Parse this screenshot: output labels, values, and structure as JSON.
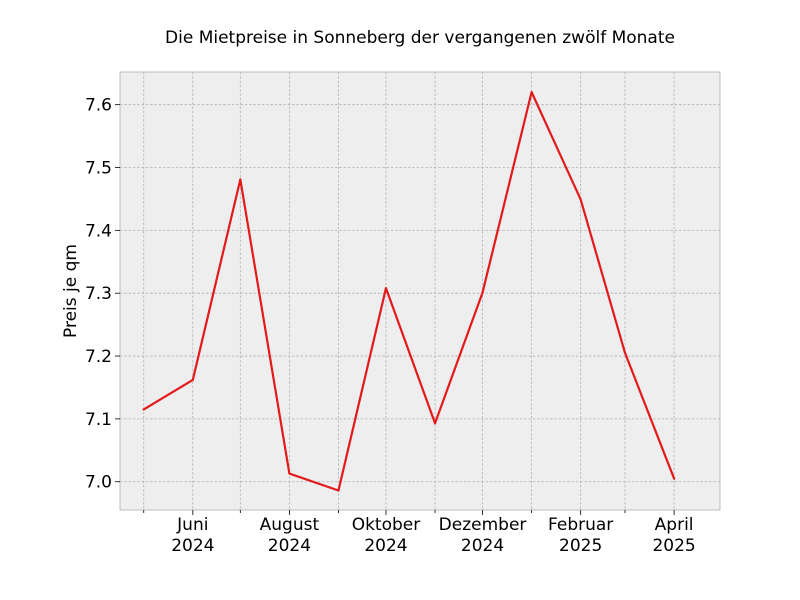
{
  "chart_data": {
    "type": "line",
    "title": "Die Mietpreise in Sonneberg der vergangenen zwölf Monate",
    "xlabel": "",
    "ylabel": "Preis je qm",
    "x": [
      "2024-05",
      "2024-06",
      "2024-07",
      "2024-08",
      "2024-09",
      "2024-10",
      "2024-11",
      "2024-12",
      "2025-01",
      "2025-02",
      "2025-03",
      "2025-04"
    ],
    "series": [
      {
        "values": [
          7.115,
          7.162,
          7.481,
          7.013,
          6.986,
          7.308,
          7.093,
          7.301,
          7.62,
          7.449,
          7.205,
          7.005
        ],
        "color": "#e31a1c"
      }
    ],
    "x_ticks": [
      {
        "x": "2024-06",
        "label": [
          "Juni",
          "2024"
        ]
      },
      {
        "x": "2024-08",
        "label": [
          "August",
          "2024"
        ]
      },
      {
        "x": "2024-10",
        "label": [
          "Oktober",
          "2024"
        ]
      },
      {
        "x": "2024-12",
        "label": [
          "Dezember",
          "2024"
        ]
      },
      {
        "x": "2025-02",
        "label": [
          "Februar",
          "2025"
        ]
      },
      {
        "x": "2025-04",
        "label": [
          "April",
          "2025"
        ]
      }
    ],
    "x_minor_ticks": [
      "2024-05",
      "2024-07",
      "2024-09",
      "2024-11",
      "2025-01",
      "2025-03"
    ],
    "y_ticks": [
      "7.0",
      "7.1",
      "7.2",
      "7.3",
      "7.4",
      "7.5",
      "7.6"
    ],
    "ylim": [
      6.955,
      7.652
    ],
    "xlim": [
      "2024-04-16",
      "2025-04-30"
    ],
    "grid": true,
    "colors": {
      "plot_background": "#eeeeee",
      "grid": "#b2b2b2",
      "frame": "#bcbcbc",
      "line": "#e31a1c"
    }
  }
}
